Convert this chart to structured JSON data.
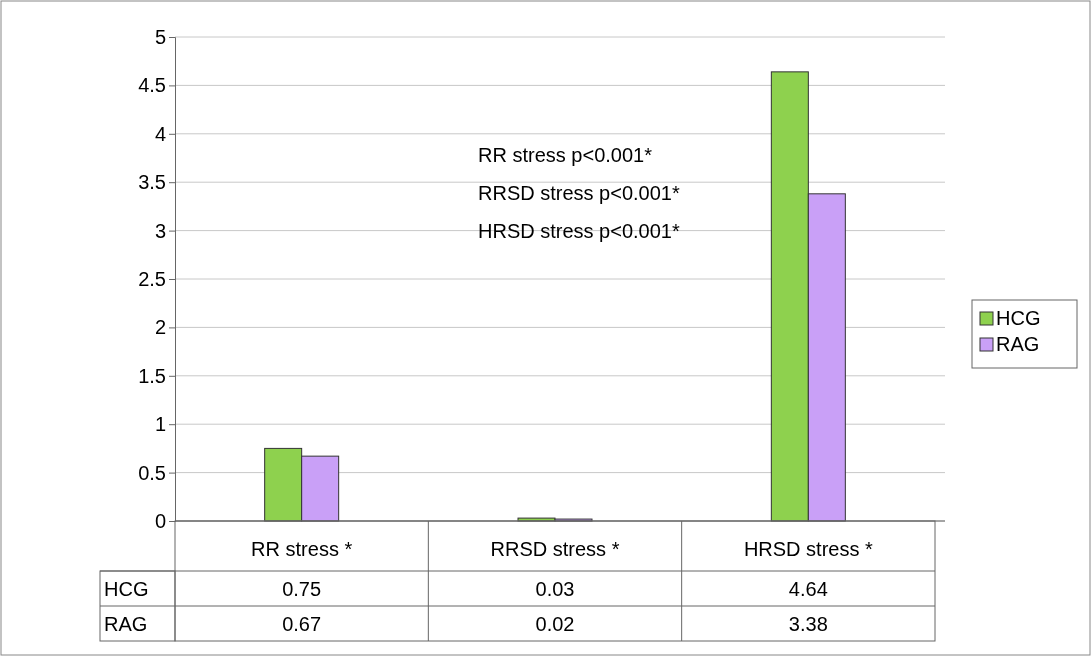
{
  "chart_data": {
    "type": "bar",
    "categories": [
      "RR stress *",
      "RRSD stress *",
      "HRSD stress *"
    ],
    "series": [
      {
        "name": "HCG",
        "color": "#8ed14e",
        "values": [
          0.75,
          0.03,
          4.64
        ]
      },
      {
        "name": "RAG",
        "color": "#c9a0f7",
        "values": [
          0.67,
          0.02,
          3.38
        ]
      }
    ],
    "ylim": [
      0,
      5
    ],
    "yticks": [
      0,
      0.5,
      1,
      1.5,
      2,
      2.5,
      3,
      3.5,
      4,
      4.5,
      5
    ],
    "grid": "y",
    "legend": "right",
    "data_labels": true,
    "annotations": [
      "RR  stress p<0.001*",
      "RRSD stress  p<0.001*",
      "HRSD stress p<0.001*"
    ]
  }
}
